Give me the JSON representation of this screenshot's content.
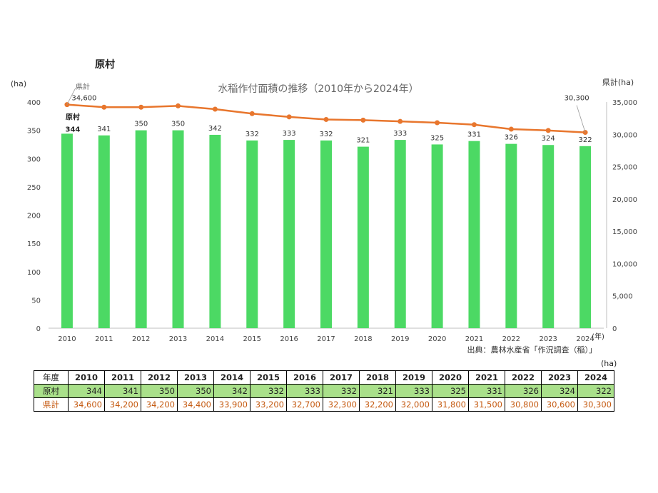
{
  "page_title": "原村",
  "chart_data": {
    "type": "bar+line",
    "title": "水稲作付面積の推移（2010年から2024年）",
    "y_left_unit": "(ha)",
    "y_right_label": "県計(ha)",
    "x_unit": "(年)",
    "source": "出典：農林水産省「作況調査（稲）」",
    "categories": [
      "2010",
      "2011",
      "2012",
      "2013",
      "2014",
      "2015",
      "2016",
      "2017",
      "2018",
      "2019",
      "2020",
      "2021",
      "2022",
      "2023",
      "2024"
    ],
    "series": [
      {
        "name": "原村",
        "type": "bar",
        "axis": "left",
        "color": "#4cd964",
        "values": [
          344,
          341,
          350,
          350,
          342,
          332,
          333,
          332,
          321,
          333,
          325,
          331,
          326,
          324,
          322
        ]
      },
      {
        "name": "県計",
        "type": "line",
        "axis": "right",
        "color": "#e8762d",
        "values": [
          34600,
          34200,
          34200,
          34400,
          33900,
          33200,
          32700,
          32300,
          32200,
          32000,
          31800,
          31500,
          30800,
          30600,
          30300
        ]
      }
    ],
    "y_left": {
      "min": 0,
      "max": 400,
      "ticks": [
        "0",
        "50",
        "100",
        "150",
        "200",
        "250",
        "300",
        "350",
        "400"
      ]
    },
    "y_right": {
      "min": 0,
      "max": 35000,
      "ticks": [
        "0",
        "5,000",
        "10,000",
        "15,000",
        "20,000",
        "25,000",
        "30,000",
        "35,000"
      ]
    },
    "annotations": {
      "first_line_label": "県計",
      "first_line_value": "34,600",
      "first_bar_label": "原村",
      "first_bar_value": "344",
      "last_line_value": "30,300"
    },
    "bar_labels": [
      "344",
      "341",
      "350",
      "350",
      "342",
      "332",
      "333",
      "332",
      "321",
      "333",
      "325",
      "331",
      "326",
      "324",
      "322"
    ]
  },
  "table": {
    "unit": "(ha)",
    "header": "年度",
    "years": [
      "2010",
      "2011",
      "2012",
      "2013",
      "2014",
      "2015",
      "2016",
      "2017",
      "2018",
      "2019",
      "2020",
      "2021",
      "2022",
      "2023",
      "2024"
    ],
    "rows": [
      {
        "label": "原村",
        "values": [
          "344",
          "341",
          "350",
          "350",
          "342",
          "332",
          "333",
          "332",
          "321",
          "333",
          "325",
          "331",
          "326",
          "324",
          "322"
        ]
      },
      {
        "label": "県計",
        "values": [
          "34,600",
          "34,200",
          "34,200",
          "34,400",
          "33,900",
          "33,200",
          "32,700",
          "32,300",
          "32,200",
          "32,000",
          "31,800",
          "31,500",
          "30,800",
          "30,600",
          "30,300"
        ]
      }
    ]
  }
}
